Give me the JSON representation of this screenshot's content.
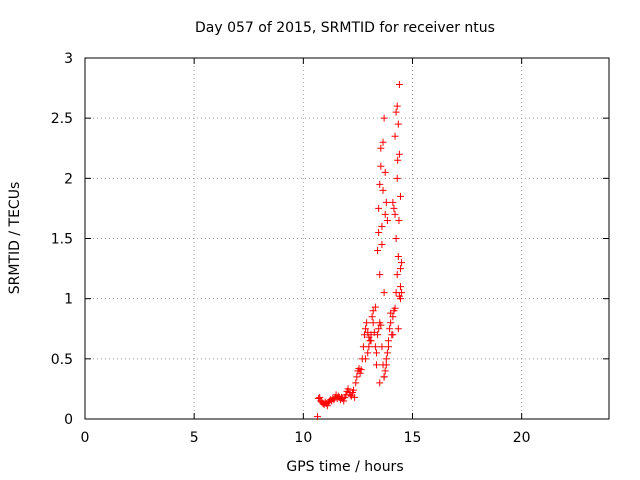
{
  "chart_data": {
    "type": "scatter",
    "title": "Day 057 of 2015, SRMTID for receiver ntus",
    "xlabel": "GPS time / hours",
    "ylabel": "SRMTID / TECUs",
    "xlim": [
      0,
      24
    ],
    "ylim": [
      0,
      3
    ],
    "xticks": [
      0,
      5,
      10,
      15,
      20
    ],
    "yticks": [
      0,
      0.5,
      1,
      1.5,
      2,
      2.5,
      3
    ],
    "xtick_labels": [
      "0",
      "5",
      "10",
      "15",
      "20"
    ],
    "ytick_labels": [
      "0",
      "0.5",
      "1",
      "1.5",
      "2",
      "2.5",
      "3"
    ],
    "grid": true,
    "marker": "+",
    "color": "#ff0000",
    "series": [
      {
        "name": "ntus",
        "x": [
          10.65,
          10.7,
          10.75,
          10.8,
          10.85,
          10.9,
          10.95,
          11.0,
          11.05,
          11.1,
          11.15,
          11.2,
          11.25,
          11.3,
          11.35,
          11.4,
          11.45,
          11.5,
          11.55,
          11.6,
          11.65,
          11.7,
          11.75,
          11.8,
          11.85,
          11.9,
          11.95,
          12.0,
          12.05,
          12.1,
          12.15,
          12.2,
          12.25,
          12.3,
          12.35,
          12.4,
          12.45,
          12.5,
          12.55,
          12.6,
          12.65,
          12.7,
          12.75,
          12.8,
          12.85,
          12.9,
          12.95,
          13.0,
          13.05,
          13.1,
          13.15,
          13.2,
          13.25,
          13.3,
          13.35,
          13.4,
          13.45,
          13.5,
          13.55,
          13.6,
          13.65,
          13.7,
          13.75,
          13.8,
          13.85,
          13.9,
          13.95,
          14.0,
          14.05,
          14.1,
          14.15,
          14.2,
          14.25,
          14.3,
          14.35,
          14.4,
          14.45,
          14.5,
          13.4,
          13.45,
          13.5,
          13.55,
          13.6,
          13.65,
          13.7,
          13.75,
          13.8,
          13.85,
          14.2,
          14.25,
          14.3,
          14.35,
          14.4,
          14.45,
          13.5,
          13.6,
          13.7,
          14.1,
          14.2,
          14.3,
          14.4,
          13.45,
          13.55,
          13.65,
          13.75,
          14.15,
          14.25,
          14.35,
          13.3,
          13.2,
          13.1,
          12.95,
          13.0,
          12.85,
          13.35,
          13.5,
          13.7,
          13.8,
          13.9,
          14.0,
          14.1,
          14.45,
          14.5,
          14.45,
          14.38,
          14.32
        ],
        "y": [
          0.02,
          0.17,
          0.18,
          0.15,
          0.14,
          0.13,
          0.12,
          0.14,
          0.13,
          0.11,
          0.14,
          0.15,
          0.16,
          0.15,
          0.17,
          0.16,
          0.18,
          0.2,
          0.17,
          0.19,
          0.18,
          0.16,
          0.18,
          0.17,
          0.15,
          0.18,
          0.2,
          0.23,
          0.25,
          0.22,
          0.2,
          0.19,
          0.22,
          0.24,
          0.18,
          0.3,
          0.35,
          0.4,
          0.42,
          0.38,
          0.41,
          0.5,
          0.6,
          0.7,
          0.75,
          0.8,
          0.72,
          0.68,
          0.65,
          0.7,
          0.85,
          0.9,
          0.72,
          0.6,
          0.55,
          0.7,
          0.75,
          0.8,
          0.78,
          0.6,
          0.45,
          0.35,
          0.4,
          0.5,
          0.55,
          0.6,
          0.75,
          0.88,
          0.7,
          0.85,
          0.9,
          0.92,
          1.05,
          1.2,
          0.75,
          1.02,
          1.1,
          1.3,
          1.4,
          1.75,
          1.95,
          2.25,
          1.6,
          2.3,
          2.5,
          2.05,
          1.8,
          1.65,
          2.35,
          2.55,
          2.6,
          2.45,
          2.2,
          1.85,
          1.2,
          1.45,
          1.05,
          1.8,
          1.7,
          2.0,
          2.78,
          1.55,
          2.1,
          1.9,
          1.7,
          1.75,
          1.5,
          1.35,
          0.93,
          0.8,
          0.65,
          0.55,
          0.6,
          0.5,
          0.45,
          0.3,
          0.35,
          0.45,
          0.65,
          0.8,
          0.7,
          1.0,
          1.05,
          1.25,
          1.65,
          2.15
        ]
      }
    ]
  }
}
